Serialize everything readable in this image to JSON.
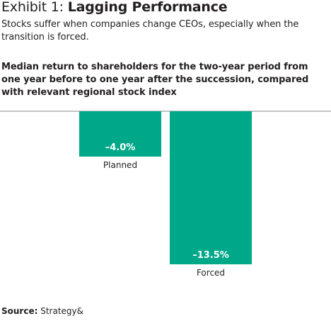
{
  "header": {
    "exhibit_label": "Exhibit 1:",
    "exhibit_name": "Lagging Performance",
    "subtitle": "Stocks suffer when companies change CEOs, especially when the transition is forced."
  },
  "chart_data": {
    "type": "bar",
    "title": "Median return to shareholders for the two-year period from one year before to one year after the succession, compared with relevant regional stock index",
    "categories": [
      "Planned",
      "Forced"
    ],
    "values": [
      -4.0,
      -13.5
    ],
    "data_labels": [
      "–4.0%",
      "–13.5%"
    ],
    "unit": "%",
    "ylim": [
      -15,
      0
    ],
    "bar_color": "#00a88a",
    "label_color": "#ffffff",
    "axis_color": "#8a8a8a",
    "grid": false,
    "legend": "none"
  },
  "footer": {
    "source_label": "Source:",
    "source_value": "Strategy&"
  }
}
